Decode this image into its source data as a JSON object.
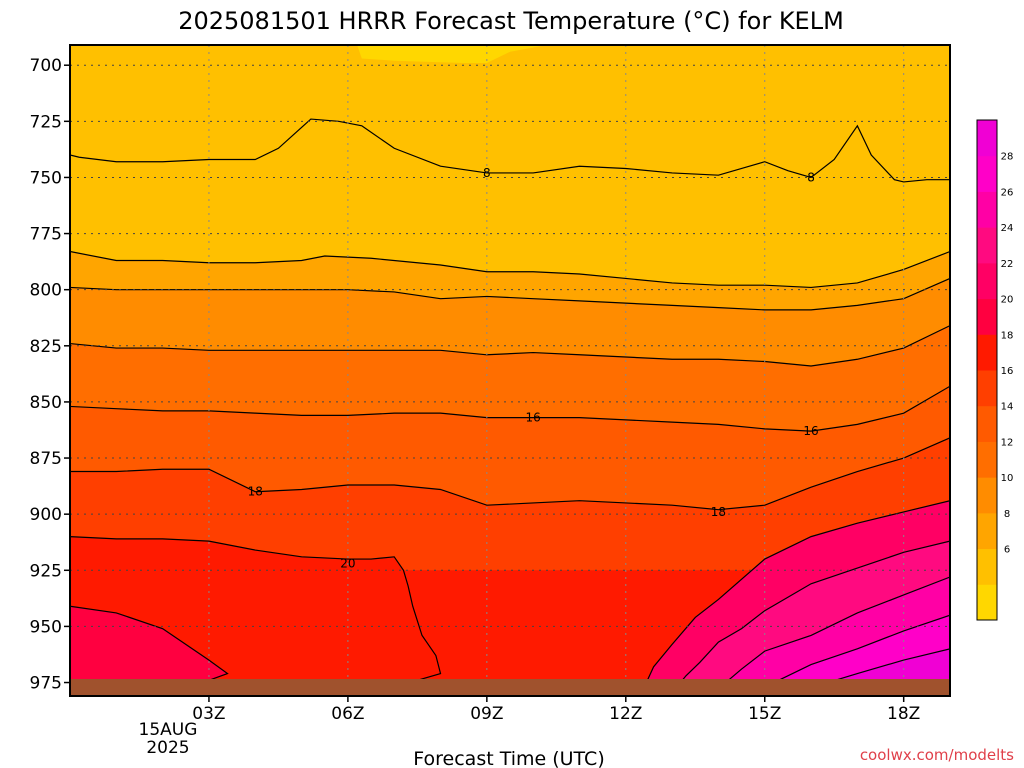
{
  "chart_data": {
    "type": "contour",
    "title": "2025081501 HRRR Forecast Temperature (°C) for KELM",
    "xlabel": "Forecast Time (UTC)",
    "ylabel": "",
    "x_ticks": [
      "03Z",
      "06Z",
      "09Z",
      "12Z",
      "15Z",
      "18Z"
    ],
    "x_tick_values": [
      3,
      6,
      9,
      12,
      15,
      18
    ],
    "x_date_lines": [
      "15AUG",
      "2025"
    ],
    "xlim": [
      0,
      19
    ],
    "y_ticks": [
      700,
      725,
      750,
      775,
      800,
      825,
      850,
      875,
      900,
      925,
      950,
      975
    ],
    "ylim": [
      981,
      691
    ],
    "y_inverted": true,
    "grid": "dotted",
    "terrain_color": "#a0522d",
    "contour_labels": [
      {
        "text": "8",
        "x": 9.0,
        "p": 748
      },
      {
        "text": "8",
        "x": 16.0,
        "p": 750
      },
      {
        "text": "16",
        "x": 10.0,
        "p": 857
      },
      {
        "text": "16",
        "x": 16.0,
        "p": 863
      },
      {
        "text": "18",
        "x": 4.0,
        "p": 890
      },
      {
        "text": "18",
        "x": 14.0,
        "p": 899
      },
      {
        "text": "20",
        "x": 6.0,
        "p": 922
      }
    ],
    "temperature_bands": [
      {
        "min_c": 4,
        "color": "#ffd700",
        "boundary": [
          [
            6.2,
            691
          ],
          [
            6.3,
            697
          ],
          [
            7.0,
            698
          ],
          [
            8.5,
            699
          ],
          [
            9.0,
            699
          ],
          [
            9.5,
            694
          ],
          [
            10.3,
            691
          ]
        ]
      },
      {
        "min_c": 6,
        "color": "#ffc000",
        "boundary": [
          [
            0,
            740
          ],
          [
            0.2,
            741
          ],
          [
            1.0,
            743
          ],
          [
            2.0,
            743
          ],
          [
            3.0,
            742
          ],
          [
            4.0,
            742
          ],
          [
            4.5,
            737
          ],
          [
            5.2,
            724
          ],
          [
            5.8,
            725
          ],
          [
            6.3,
            727
          ],
          [
            7.0,
            737
          ],
          [
            8.0,
            745
          ],
          [
            9.0,
            748
          ],
          [
            10.0,
            748
          ],
          [
            11.0,
            745
          ],
          [
            12.0,
            746
          ],
          [
            13.0,
            748
          ],
          [
            14.0,
            749
          ],
          [
            15.0,
            743
          ],
          [
            15.5,
            747
          ],
          [
            16.0,
            750
          ],
          [
            16.5,
            742
          ],
          [
            17.0,
            727
          ],
          [
            17.3,
            740
          ],
          [
            17.8,
            751
          ],
          [
            18.0,
            752
          ],
          [
            18.5,
            751
          ],
          [
            19.0,
            751
          ]
        ]
      },
      {
        "min_c": 8,
        "color": "#ffa500",
        "boundary": [
          [
            0,
            783
          ],
          [
            1.0,
            787
          ],
          [
            2.0,
            787
          ],
          [
            3.0,
            788
          ],
          [
            4.0,
            788
          ],
          [
            5.0,
            787
          ],
          [
            5.5,
            785
          ],
          [
            6.5,
            786
          ],
          [
            8.0,
            789
          ],
          [
            9.0,
            792
          ],
          [
            10.0,
            792
          ],
          [
            11.0,
            793
          ],
          [
            12.0,
            795
          ],
          [
            13.0,
            797
          ],
          [
            14.0,
            798
          ],
          [
            15.0,
            798
          ],
          [
            16.0,
            799
          ],
          [
            17.0,
            797
          ],
          [
            18.0,
            791
          ],
          [
            19.0,
            783
          ]
        ]
      },
      {
        "min_c": 10,
        "color": "#ff8c00",
        "boundary": [
          [
            0,
            799
          ],
          [
            1.0,
            800
          ],
          [
            2.0,
            800
          ],
          [
            3.0,
            800
          ],
          [
            4.0,
            800
          ],
          [
            5.0,
            800
          ],
          [
            6.0,
            800
          ],
          [
            7.0,
            801
          ],
          [
            8.0,
            804
          ],
          [
            9.0,
            803
          ],
          [
            10.0,
            804
          ],
          [
            11.0,
            805
          ],
          [
            12.0,
            806
          ],
          [
            13.0,
            807
          ],
          [
            14.0,
            808
          ],
          [
            15.0,
            809
          ],
          [
            16.0,
            809
          ],
          [
            17.0,
            807
          ],
          [
            18.0,
            804
          ],
          [
            19.0,
            795
          ]
        ]
      },
      {
        "min_c": 12,
        "color": "#ff6e00",
        "boundary": [
          [
            0,
            824
          ],
          [
            1.0,
            826
          ],
          [
            2.0,
            826
          ],
          [
            3.0,
            827
          ],
          [
            4.0,
            827
          ],
          [
            5.0,
            827
          ],
          [
            6.0,
            827
          ],
          [
            7.0,
            827
          ],
          [
            8.0,
            827
          ],
          [
            9.0,
            829
          ],
          [
            10.0,
            828
          ],
          [
            11.0,
            829
          ],
          [
            12.0,
            830
          ],
          [
            13.0,
            831
          ],
          [
            14.0,
            831
          ],
          [
            15.0,
            832
          ],
          [
            16.0,
            834
          ],
          [
            17.0,
            831
          ],
          [
            18.0,
            826
          ],
          [
            19.0,
            816
          ]
        ]
      },
      {
        "min_c": 14,
        "color": "#ff5a00",
        "boundary": [
          [
            0,
            852
          ],
          [
            1.0,
            853
          ],
          [
            2.0,
            854
          ],
          [
            3.0,
            854
          ],
          [
            4.0,
            855
          ],
          [
            5.0,
            856
          ],
          [
            6.0,
            856
          ],
          [
            7.0,
            855
          ],
          [
            8.0,
            855
          ],
          [
            9.0,
            857
          ],
          [
            10.0,
            857
          ],
          [
            11.0,
            857
          ],
          [
            12.0,
            858
          ],
          [
            13.0,
            859
          ],
          [
            14.0,
            860
          ],
          [
            15.0,
            862
          ],
          [
            16.0,
            863
          ],
          [
            17.0,
            860
          ],
          [
            18.0,
            855
          ],
          [
            19.0,
            843
          ]
        ]
      },
      {
        "min_c": 16,
        "color": "#ff3f00",
        "boundary": [
          [
            0,
            881
          ],
          [
            1.0,
            881
          ],
          [
            2.0,
            880
          ],
          [
            3.0,
            880
          ],
          [
            4.0,
            890
          ],
          [
            5.0,
            889
          ],
          [
            6.0,
            887
          ],
          [
            7.0,
            887
          ],
          [
            8.0,
            889
          ],
          [
            9.0,
            896
          ],
          [
            10.0,
            895
          ],
          [
            11.0,
            894
          ],
          [
            12.0,
            895
          ],
          [
            13.0,
            896
          ],
          [
            14.0,
            898
          ],
          [
            15.0,
            896
          ],
          [
            16.0,
            888
          ],
          [
            17.0,
            881
          ],
          [
            18.0,
            875
          ],
          [
            19.0,
            866
          ]
        ]
      },
      {
        "min_c": 18,
        "color": "#ff1a00",
        "boundary": [
          [
            0,
            910
          ],
          [
            1.0,
            911
          ],
          [
            2.0,
            911
          ],
          [
            3.0,
            912
          ],
          [
            4.0,
            916
          ],
          [
            5.0,
            919
          ],
          [
            6.0,
            920
          ],
          [
            6.5,
            920
          ],
          [
            7.0,
            919
          ],
          [
            7.2,
            925
          ],
          [
            7.3,
            932
          ],
          [
            7.4,
            941
          ],
          [
            7.6,
            954
          ],
          [
            7.9,
            963
          ],
          [
            8.0,
            971
          ],
          [
            7.5,
            974
          ],
          [
            7.0,
            976
          ],
          [
            6.0,
            978
          ],
          [
            5.0,
            979
          ],
          [
            4.0,
            980
          ],
          [
            3.0,
            980
          ],
          [
            2.0,
            980
          ],
          [
            1.0,
            979
          ],
          [
            0,
            979
          ]
        ]
      },
      {
        "min_c": 20,
        "color": "#ff0040",
        "boundary": [
          [
            0,
            941
          ],
          [
            1.0,
            944
          ],
          [
            2.0,
            951
          ],
          [
            2.5,
            958
          ],
          [
            3.0,
            965
          ],
          [
            3.4,
            971
          ],
          [
            3.0,
            974
          ],
          [
            2.2,
            977
          ],
          [
            0,
            979
          ]
        ]
      },
      {
        "min_c": 22,
        "color": "#ff0064",
        "boundary": [
          [
            19.0,
            894
          ],
          [
            18.0,
            899
          ],
          [
            17.0,
            904
          ],
          [
            16.0,
            910
          ],
          [
            15.0,
            920
          ],
          [
            14.0,
            938
          ],
          [
            13.5,
            946
          ],
          [
            13.0,
            958
          ],
          [
            12.6,
            968
          ],
          [
            12.4,
            977
          ],
          [
            12.3,
            981
          ]
        ]
      },
      {
        "min_c": 24,
        "color": "#ff0a80",
        "boundary": [
          [
            19.0,
            912
          ],
          [
            18.0,
            917
          ],
          [
            17.0,
            924
          ],
          [
            16.0,
            931
          ],
          [
            15.0,
            943
          ],
          [
            14.5,
            951
          ],
          [
            14.0,
            957
          ],
          [
            13.6,
            966
          ],
          [
            13.3,
            972
          ],
          [
            13.1,
            977
          ],
          [
            12.8,
            981
          ]
        ]
      },
      {
        "min_c": 26,
        "color": "#ff00a5",
        "boundary": [
          [
            19.0,
            928
          ],
          [
            18.0,
            936
          ],
          [
            17.0,
            944
          ],
          [
            16.0,
            954
          ],
          [
            15.0,
            961
          ],
          [
            14.5,
            969
          ],
          [
            14.1,
            976
          ],
          [
            13.8,
            981
          ]
        ]
      },
      {
        "min_c": 28,
        "color": "#ff00c8",
        "boundary": [
          [
            19.0,
            945
          ],
          [
            18.0,
            952
          ],
          [
            17.0,
            960
          ],
          [
            16.0,
            967
          ],
          [
            15.3,
            974
          ],
          [
            14.8,
            978
          ],
          [
            14.5,
            981
          ]
        ]
      },
      {
        "min_c": 30,
        "color": "#f000d4",
        "boundary": [
          [
            19.0,
            960
          ],
          [
            18.0,
            965
          ],
          [
            17.0,
            971
          ],
          [
            16.2,
            976
          ],
          [
            15.8,
            979
          ],
          [
            15.6,
            981
          ]
        ]
      }
    ],
    "colorbar": {
      "ticks": [
        6,
        8,
        10,
        12,
        14,
        16,
        18,
        20,
        22,
        24,
        26,
        28
      ],
      "colors": [
        "#ffd700",
        "#ffc000",
        "#ffa500",
        "#ff8c00",
        "#ff6e00",
        "#ff5a00",
        "#ff3f00",
        "#ff1a00",
        "#ff0040",
        "#ff0064",
        "#ff0a80",
        "#ff00a5",
        "#ff00c8",
        "#f000d4"
      ]
    },
    "credit": "coolwx.com/modelts"
  }
}
